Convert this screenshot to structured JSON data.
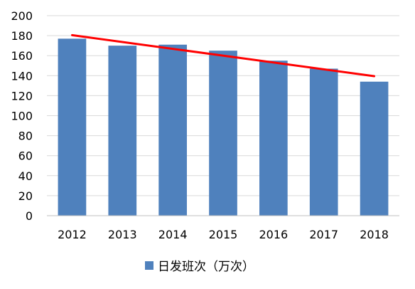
{
  "chart_data": {
    "type": "bar",
    "title": "",
    "xlabel": "",
    "ylabel": "",
    "categories": [
      "2012",
      "2013",
      "2014",
      "2015",
      "2016",
      "2017",
      "2018"
    ],
    "series": [
      {
        "name": "日发班次（万次）",
        "color": "#4F81BD",
        "values": [
          177,
          170,
          171,
          165,
          155,
          147,
          134
        ]
      }
    ],
    "trendline": {
      "type": "linear",
      "color": "#FF0000",
      "start": 180.5,
      "end": 139.5
    },
    "ylim": [
      0,
      200
    ],
    "yticks": [
      0,
      20,
      40,
      60,
      80,
      100,
      120,
      140,
      160,
      180,
      200
    ],
    "grid": true,
    "legend": "bottom"
  }
}
